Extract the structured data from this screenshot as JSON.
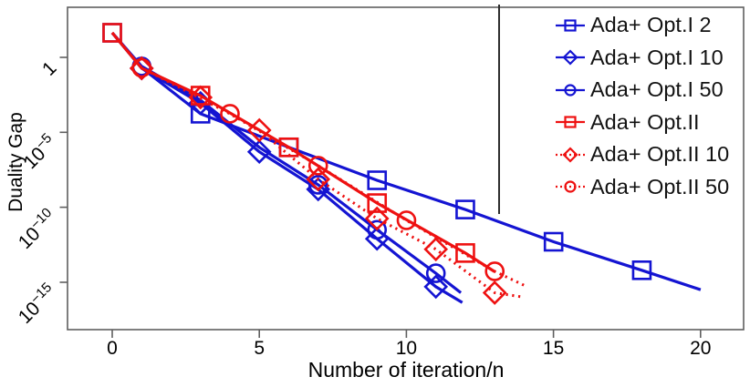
{
  "figure": {
    "xlabel": "Number of iteration/n",
    "ylabel": "Duality Gap",
    "x_tick_labels": [
      "0",
      "5",
      "10",
      "15",
      "20"
    ],
    "y_tick_labels": [
      {
        "mant": "1",
        "exp": ""
      },
      {
        "mant": "10",
        "exp": "−5"
      },
      {
        "mant": "10",
        "exp": "−10"
      },
      {
        "mant": "10",
        "exp": "−15"
      }
    ]
  },
  "chart_data": {
    "type": "line",
    "title": "",
    "xlabel": "Number of iteration/n",
    "ylabel": "Duality Gap",
    "grid": false,
    "legend_position": "top-right",
    "x_axis": {
      "ticks": [
        0,
        5,
        10,
        15,
        20
      ],
      "lim": [
        -1.52,
        21.46
      ]
    },
    "y_axis": {
      "scale": "log10",
      "ticks_log10": [
        0,
        -5,
        -10,
        -15
      ],
      "tick_labels": [
        "1",
        "10^-5",
        "10^-10",
        "10^-15"
      ],
      "lim_log10": [
        -18.16,
        3.34
      ]
    },
    "colors": {
      "optI_blue": "#1414d2",
      "optII_red": "#ee1111"
    },
    "series": [
      {
        "name": "Ada+ Opt.I 2",
        "color": "#1414d2",
        "line": "solid",
        "marker": "square",
        "x": [
          0,
          1,
          3,
          6,
          9,
          12,
          15,
          18,
          20
        ],
        "log10_y": [
          1.64,
          -0.7,
          -3.76,
          -6.0,
          -8.2,
          -10.15,
          -12.3,
          -14.2,
          -15.5
        ],
        "marker_x": [
          0,
          3,
          6,
          9,
          12,
          15,
          18
        ]
      },
      {
        "name": "Ada+ Opt.I 10",
        "color": "#1414d2",
        "line": "solid",
        "marker": "diamond",
        "x": [
          0,
          1,
          3,
          5,
          7,
          9,
          11,
          11.9
        ],
        "log10_y": [
          1.64,
          -0.73,
          -3.05,
          -6.3,
          -8.8,
          -12.1,
          -15.3,
          -16.35
        ],
        "marker_x": [
          1,
          3,
          5,
          7,
          9,
          11
        ]
      },
      {
        "name": "Ada+ Opt.I 50",
        "color": "#1414d2",
        "line": "solid",
        "marker": "circle",
        "x": [
          0,
          1,
          3,
          5,
          7,
          9,
          11,
          11.85
        ],
        "log10_y": [
          1.64,
          -0.6,
          -2.85,
          -6.0,
          -8.5,
          -11.5,
          -14.4,
          -15.7
        ],
        "marker_x": [
          1,
          7,
          9,
          11
        ]
      },
      {
        "name": "Ada+ Opt.II",
        "color": "#ee1111",
        "line": "solid",
        "marker": "square",
        "x": [
          0,
          1,
          3,
          6,
          9,
          12,
          13
        ],
        "log10_y": [
          1.64,
          -0.73,
          -2.55,
          -6.0,
          -9.72,
          -13.05,
          -14.3
        ],
        "marker_x": [
          0,
          3,
          6,
          9,
          12
        ]
      },
      {
        "name": "Ada+ Opt.II 10",
        "color": "#ee1111",
        "line": "dotted",
        "marker": "diamond",
        "x": [
          0,
          1,
          3,
          5,
          7,
          9,
          11,
          13,
          14
        ],
        "log10_y": [
          1.64,
          -0.73,
          -2.67,
          -4.86,
          -8.13,
          -10.75,
          -12.8,
          -15.7,
          -16.0
        ],
        "marker_x": [
          1,
          3,
          5,
          7,
          9,
          11,
          13
        ]
      },
      {
        "name": "Ada+ Opt.II 50",
        "color": "#ee1111",
        "line": "dotted",
        "marker": "circle",
        "x": [
          0,
          1,
          4,
          7,
          10,
          13,
          14
        ],
        "log10_y": [
          1.64,
          -0.7,
          -3.76,
          -7.22,
          -10.87,
          -14.27,
          -15.2
        ],
        "marker_x": [
          1,
          4,
          7,
          10,
          13
        ]
      }
    ]
  }
}
